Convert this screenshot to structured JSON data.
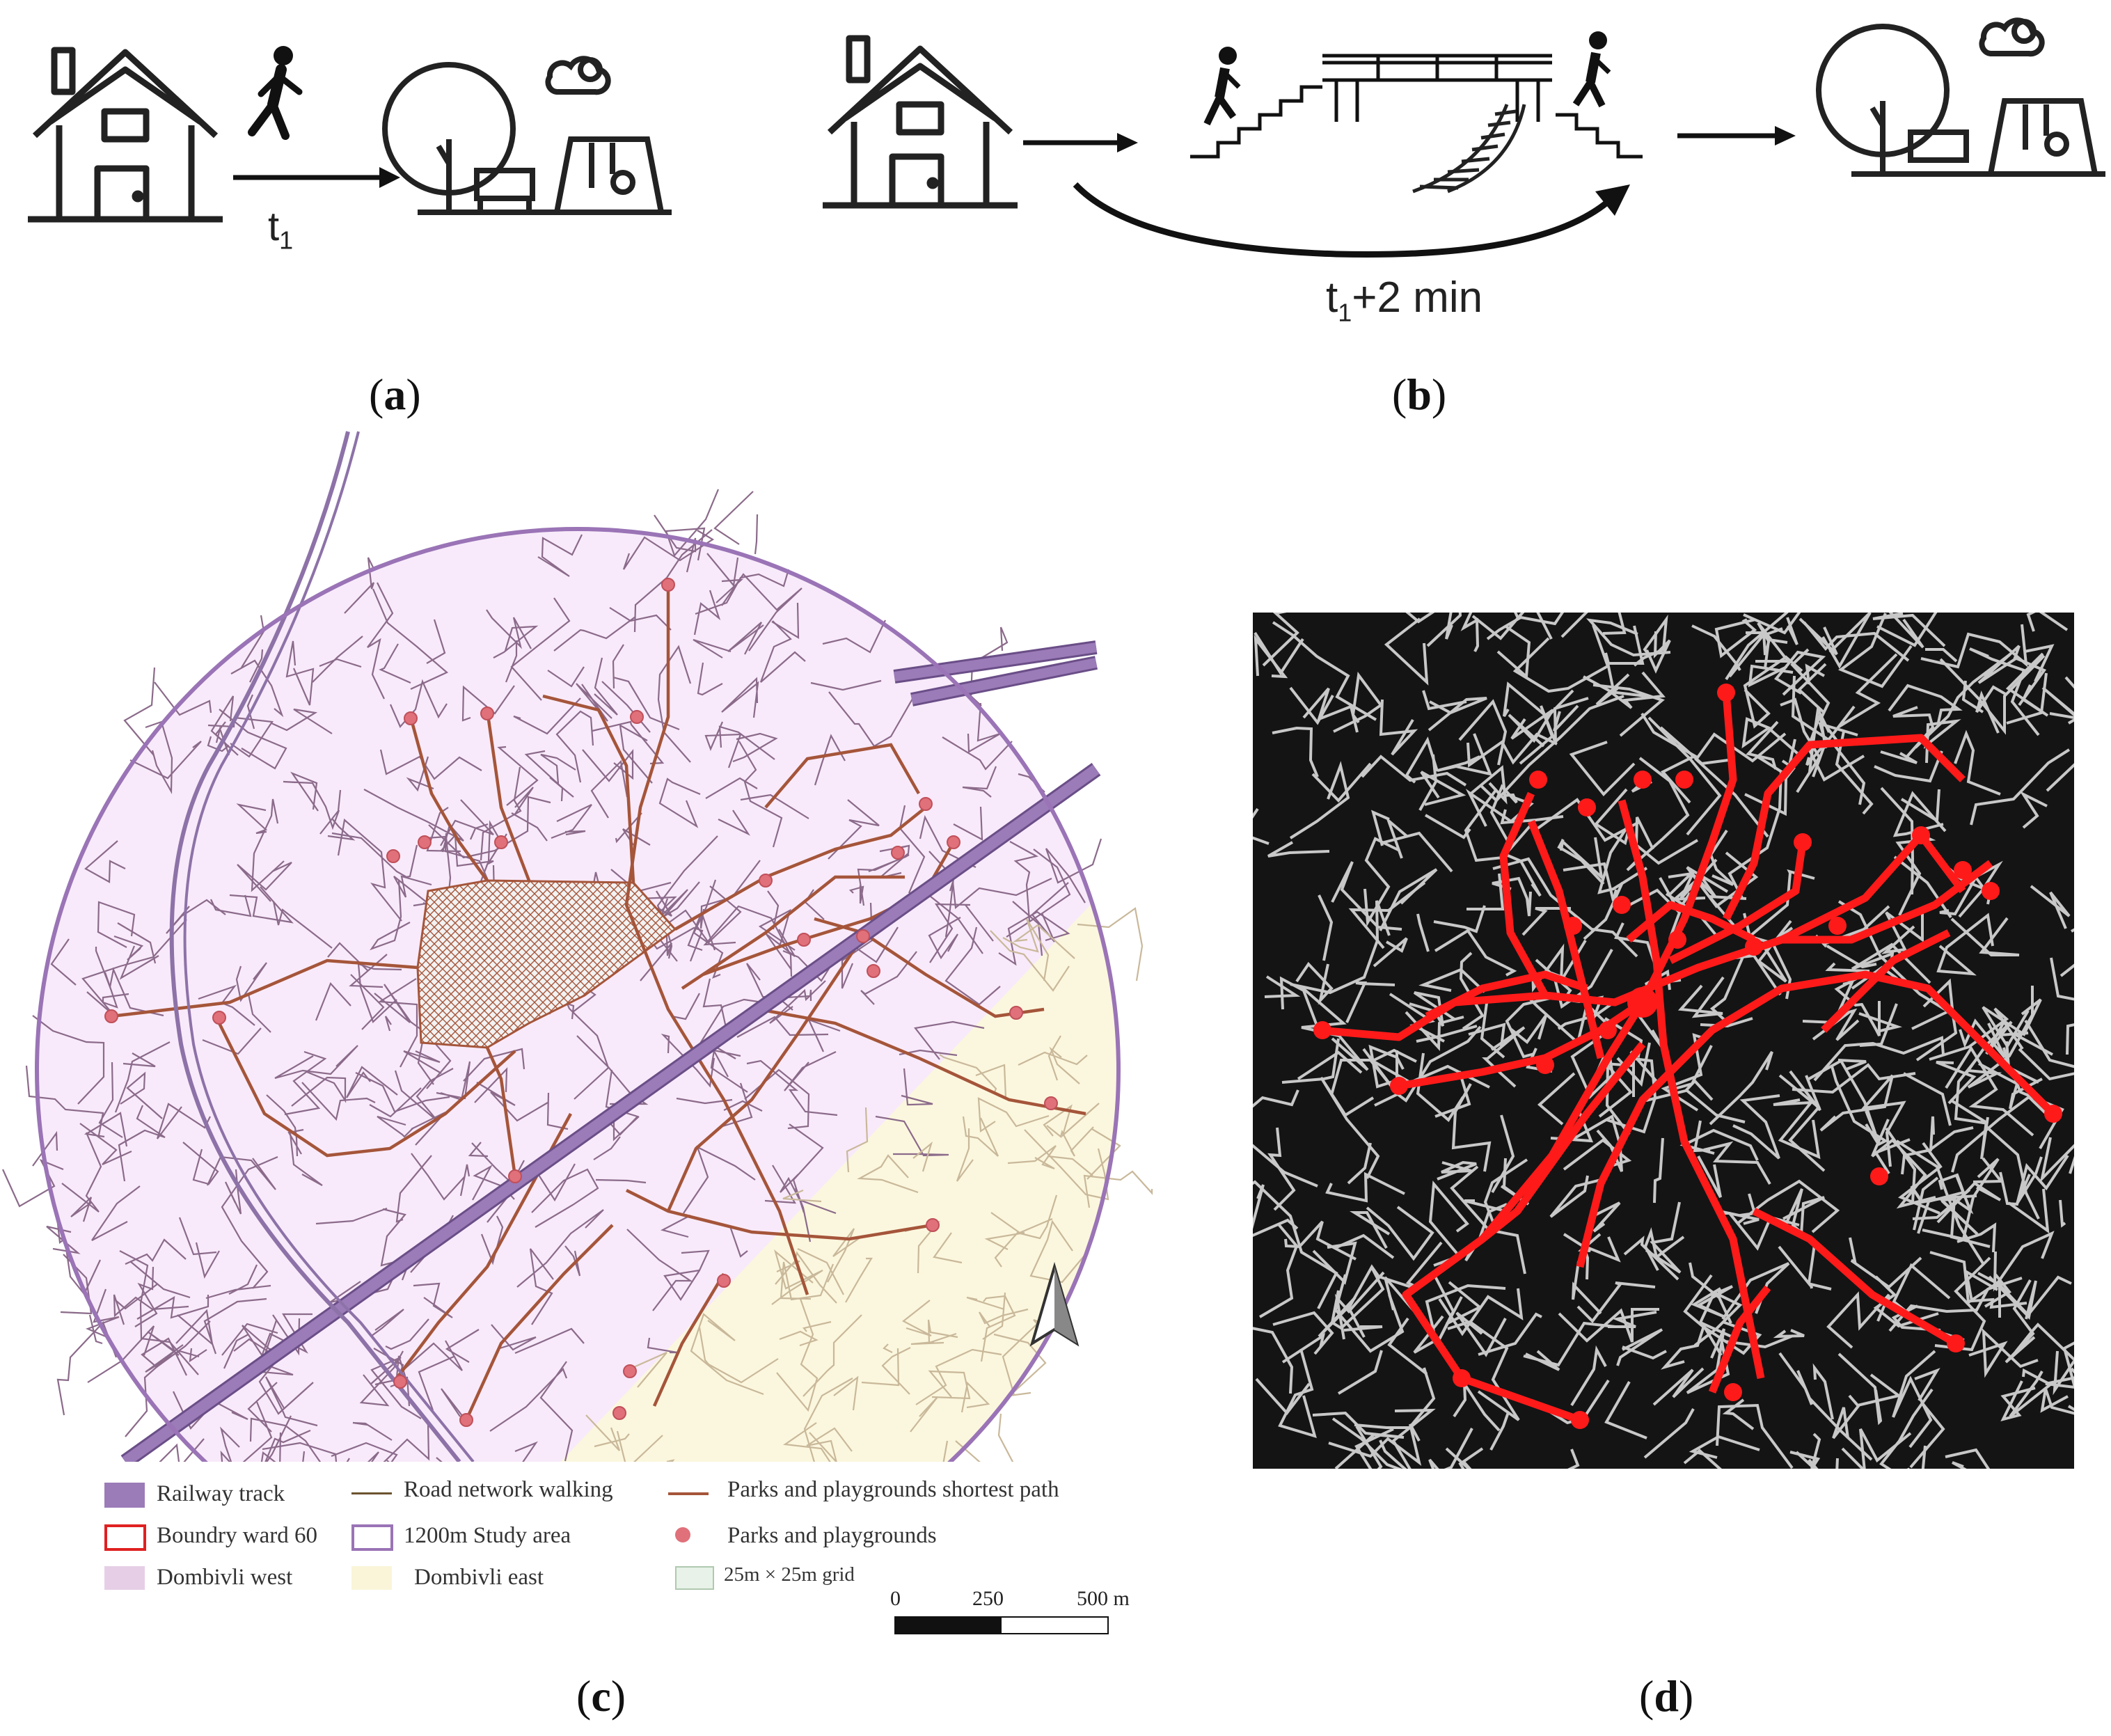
{
  "panels": {
    "a": {
      "label": "a",
      "time_main": "t",
      "time_sub": "1"
    },
    "b": {
      "label": "b",
      "time_main": "t",
      "time_sub": "1",
      "time_suffix": "+2 min"
    },
    "c": {
      "label": "c"
    },
    "d": {
      "label": "d"
    }
  },
  "legend": {
    "railway": "Railway track",
    "road": "Road network walking",
    "shortest": "Parks and playgrounds shortest path",
    "boundary": "Boundry ward 60",
    "study": "1200m Study area",
    "parks": "Parks and playgrounds",
    "west": "Dombivli west",
    "east": "Dombivli east",
    "grid": "25m × 25m grid"
  },
  "scalebar": {
    "t0": "0",
    "t1": "250",
    "t2": "500 m"
  },
  "colors": {
    "railway": "#9b7bb8",
    "road": "#6b5330",
    "shortest": "#a5553a",
    "boundary": "#e02020",
    "study_outline": "#9a74b6",
    "west_fill": "#f8eafa",
    "east_fill": "#fbf7de",
    "park": "#e0707a",
    "grid": "#e8f2e8",
    "panel_d_bg": "#141414",
    "panel_d_path": "#ff1a1a",
    "panel_d_road": "#c8c8c8"
  },
  "icons": [
    "house-icon",
    "walking-person-icon",
    "park-icon",
    "stairs-up-icon",
    "footbridge-icon",
    "railway-tracks-icon",
    "stairs-down-icon",
    "north-arrow-icon"
  ]
}
